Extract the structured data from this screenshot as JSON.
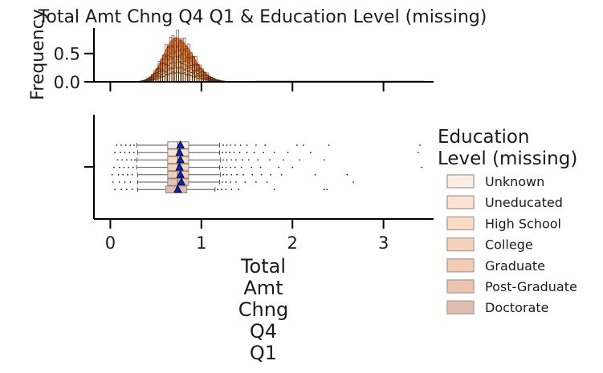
{
  "chart_data": {
    "type": "box",
    "title": "Total Amt Chng Q4 Q1 & Education Level (missing)",
    "xlabel_lines": [
      "Total",
      "Amt",
      "Chng",
      "Q4",
      "Q1"
    ],
    "hist_ylabel": "Frequency",
    "xlim": [
      -0.18,
      3.55
    ],
    "hist_ylim": [
      0,
      0.95
    ],
    "x_ticks": [
      0,
      1,
      2,
      3
    ],
    "hist_y_ticks": [
      0.0,
      0.5
    ],
    "hist_y_tick_labels": [
      "0.0",
      "0.5"
    ],
    "legend_title_lines": [
      "Education",
      "Level (missing)"
    ],
    "legend_position": "right",
    "kde_mode": 0.72,
    "kde_sd": 0.135,
    "series": [
      {
        "name": "Unknown",
        "color": "#f9ede4",
        "kde_peak": 0.78,
        "q1": 0.63,
        "median": 0.74,
        "q3": 0.86,
        "whisker_low": 0.29,
        "whisker_high": 1.2,
        "mean": 0.77,
        "outliers": [
          0.07,
          0.12,
          0.17,
          0.22,
          0.26,
          1.24,
          1.28,
          1.32,
          1.37,
          1.43,
          1.5,
          1.6,
          1.7,
          2.05,
          2.12,
          2.4,
          3.4
        ]
      },
      {
        "name": "Uneducated",
        "color": "#fbe3d1",
        "kde_peak": 0.66,
        "q1": 0.63,
        "median": 0.74,
        "q3": 0.86,
        "whisker_low": 0.3,
        "whisker_high": 1.2,
        "mean": 0.76,
        "outliers": [
          0.05,
          0.11,
          0.16,
          0.21,
          0.26,
          1.23,
          1.27,
          1.31,
          1.36,
          1.42,
          1.5,
          1.58,
          1.68,
          1.8,
          1.95,
          2.2,
          3.38
        ]
      },
      {
        "name": "High School",
        "color": "#fadcc4",
        "kde_peak": 0.55,
        "q1": 0.63,
        "median": 0.74,
        "q3": 0.86,
        "whisker_low": 0.29,
        "whisker_high": 1.21,
        "mean": 0.77,
        "outliers": [
          0.08,
          0.13,
          0.18,
          0.23,
          0.27,
          1.24,
          1.28,
          1.33,
          1.38,
          1.45,
          1.52,
          1.62,
          1.75,
          1.9,
          2.08,
          2.35
        ]
      },
      {
        "name": "College",
        "color": "#f6d3bb",
        "kde_peak": 0.45,
        "q1": 0.63,
        "median": 0.74,
        "q3": 0.86,
        "whisker_low": 0.29,
        "whisker_high": 1.2,
        "mean": 0.76,
        "outliers": [
          0.04,
          0.1,
          0.15,
          0.2,
          0.25,
          1.23,
          1.27,
          1.32,
          1.37,
          1.44,
          1.55,
          1.65,
          1.85,
          2.0,
          3.42
        ]
      },
      {
        "name": "Graduate",
        "color": "#f3ccb4",
        "kde_peak": 0.35,
        "q1": 0.63,
        "median": 0.74,
        "q3": 0.86,
        "whisker_low": 0.3,
        "whisker_high": 1.21,
        "mean": 0.77,
        "outliers": [
          0.02,
          0.09,
          0.14,
          0.19,
          0.24,
          1.24,
          1.28,
          1.33,
          1.39,
          1.46,
          1.56,
          1.66,
          1.76,
          1.88,
          2.25,
          2.6
        ]
      },
      {
        "name": "Post-Graduate",
        "color": "#ecc1ad",
        "kde_peak": 0.25,
        "q1": 0.63,
        "median": 0.74,
        "q3": 0.86,
        "whisker_low": 0.3,
        "whisker_high": 1.2,
        "mean": 0.78,
        "outliers": [
          0.03,
          0.1,
          0.16,
          0.22,
          1.23,
          1.27,
          1.32,
          1.38,
          1.48,
          1.6,
          1.72,
          2.67
        ]
      },
      {
        "name": "Doctorate",
        "color": "#dfbeaf",
        "kde_peak": 0.16,
        "q1": 0.61,
        "median": 0.73,
        "q3": 0.84,
        "whisker_low": 0.3,
        "whisker_high": 1.15,
        "mean": 0.74,
        "outliers": [
          0.05,
          0.12,
          0.18,
          0.24,
          1.18,
          1.22,
          1.27,
          1.33,
          1.41,
          1.8,
          2.35,
          2.38
        ]
      }
    ]
  }
}
